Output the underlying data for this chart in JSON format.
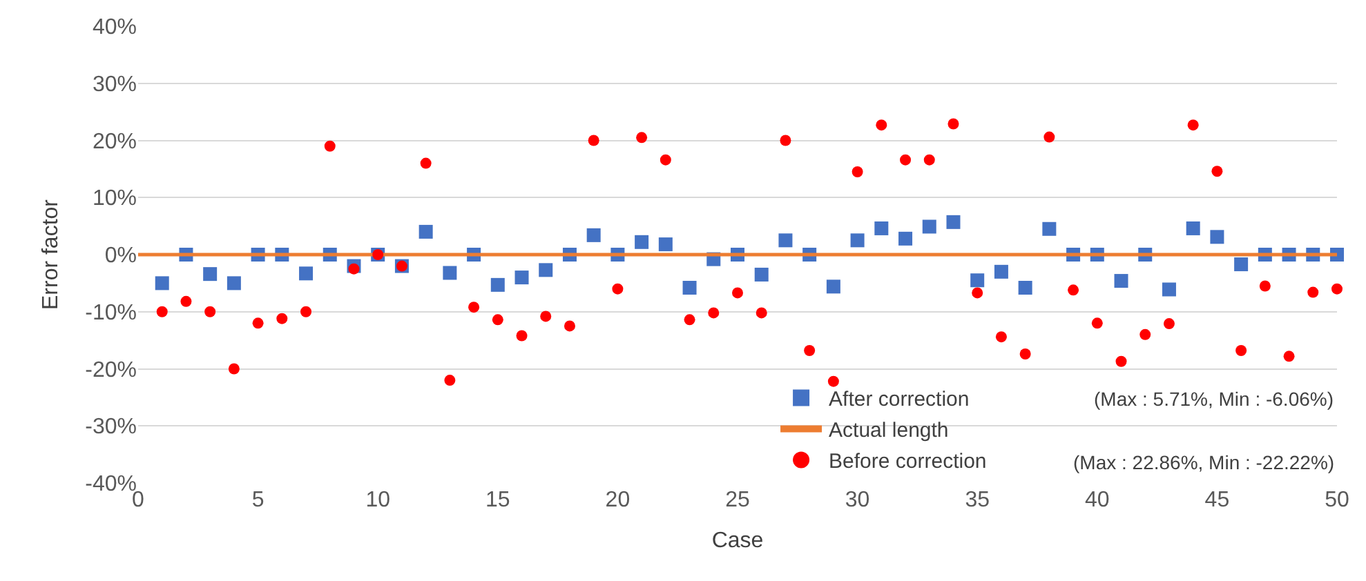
{
  "chart_data": {
    "type": "scatter",
    "xlabel": "Case",
    "ylabel": "Error factor",
    "x": [
      1,
      2,
      3,
      4,
      5,
      6,
      7,
      8,
      9,
      10,
      11,
      12,
      13,
      14,
      15,
      16,
      17,
      18,
      19,
      20,
      21,
      22,
      23,
      24,
      25,
      26,
      27,
      28,
      29,
      30,
      31,
      32,
      33,
      34,
      35,
      36,
      37,
      38,
      39,
      40,
      41,
      42,
      43,
      44,
      45,
      46,
      47,
      48,
      49,
      50
    ],
    "series": [
      {
        "name": "After correction",
        "color": "#4472c4",
        "marker": "square",
        "values": [
          -5,
          0,
          -3.4,
          -5,
          0,
          0,
          -3.3,
          0,
          -2,
          0,
          -2,
          4,
          -3.2,
          0,
          -5.3,
          -4,
          -2.7,
          0,
          3.4,
          0,
          2.2,
          1.8,
          -5.8,
          -0.8,
          0,
          -3.5,
          2.5,
          0,
          -5.6,
          2.5,
          4.6,
          2.8,
          4.9,
          5.7,
          -4.5,
          -3,
          -5.8,
          4.5,
          0,
          0,
          -4.6,
          0,
          -6.1,
          4.6,
          3.1,
          -1.7,
          0,
          0,
          0,
          0
        ]
      },
      {
        "name": "Actual length",
        "type": "line",
        "color": "#ed7d31",
        "marker": "none",
        "x": [
          0,
          50
        ],
        "values": [
          0,
          0
        ]
      },
      {
        "name": "Before correction",
        "color": "#ff0000",
        "marker": "circle",
        "values": [
          -10,
          -8.2,
          -10,
          -20,
          -12,
          -11.2,
          -10,
          19,
          -2.5,
          0,
          -2,
          16,
          -22,
          -9.2,
          -11.4,
          -14.2,
          -10.8,
          -12.5,
          20,
          -6,
          20.5,
          16.6,
          -11.4,
          -10.2,
          -6.7,
          -10.2,
          20,
          -16.8,
          -22.2,
          14.5,
          22.7,
          16.6,
          16.6,
          22.9,
          -6.7,
          -14.4,
          -17.4,
          20.6,
          -6.2,
          -12,
          -18.7,
          -14,
          -12.1,
          22.7,
          14.6,
          -16.8,
          -5.5,
          -17.8,
          -6.6,
          -6
        ]
      }
    ],
    "annotations": [
      "(Max : 5.71%, Min : -6.06%)",
      "(Max : 22.86%, Min : -22.22%)"
    ],
    "xlim": [
      0,
      50
    ],
    "xticks": [
      0,
      5,
      10,
      15,
      20,
      25,
      30,
      35,
      40,
      45,
      50
    ],
    "ylim": [
      -40,
      40
    ],
    "yticks": [
      {
        "value": -40,
        "label": "-40%"
      },
      {
        "value": -30,
        "label": "-30%"
      },
      {
        "value": -20,
        "label": "-20%"
      },
      {
        "value": -10,
        "label": "-10%"
      },
      {
        "value": 0,
        "label": "0%"
      },
      {
        "value": 10,
        "label": "10%"
      },
      {
        "value": 20,
        "label": "20%"
      },
      {
        "value": 30,
        "label": "30%"
      },
      {
        "value": 40,
        "label": "40%"
      }
    ],
    "grid": "y",
    "legend": "bottom right"
  }
}
